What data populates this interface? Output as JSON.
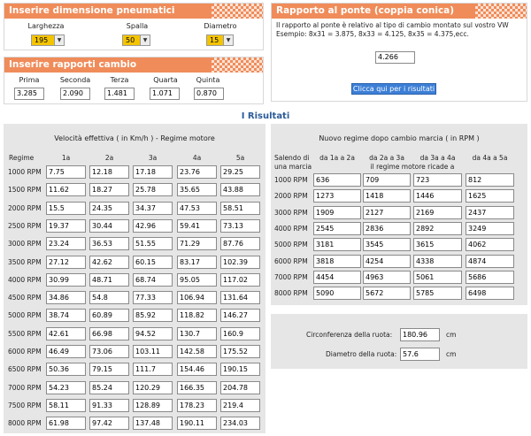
{
  "tyres": {
    "title": "Inserire dimensione pneumatici",
    "fields": [
      {
        "label": "Larghezza",
        "value": "195"
      },
      {
        "label": "Spalla",
        "value": "50"
      },
      {
        "label": "Diametro",
        "value": "15"
      }
    ]
  },
  "gears": {
    "title": "Inserire rapporti cambio",
    "fields": [
      {
        "label": "Prima",
        "value": "3.285"
      },
      {
        "label": "Seconda",
        "value": "2.090"
      },
      {
        "label": "Terza",
        "value": "1.481"
      },
      {
        "label": "Quarta",
        "value": "1.071"
      },
      {
        "label": "Quinta",
        "value": "0.870"
      }
    ]
  },
  "bridge": {
    "title": "Rapporto al ponte (coppia conica)",
    "line1": "Il rapporto al ponte è relativo al tipo di cambio montato sul vostro VW",
    "line2": "Esempio: 8x31 = 3.875, 8x33 = 4.125, 8x35 = 4.375,ecc.",
    "value": "4.266",
    "button": "Clicca qui per i risultati"
  },
  "results_title": "I Risultati",
  "speed": {
    "heading": "Velocità effettiva ( in Km/h ) - Regime motore",
    "col_regime": "Regime",
    "cols": [
      "1a",
      "2a",
      "3a",
      "4a",
      "5a"
    ],
    "rows": [
      {
        "rpm": "1000 RPM",
        "v": [
          "7.75",
          "12.18",
          "17.18",
          "23.76",
          "29.25"
        ]
      },
      {
        "rpm": "1500 RPM",
        "v": [
          "11.62",
          "18.27",
          "25.78",
          "35.65",
          "43.88"
        ]
      },
      {
        "rpm": "2000 RPM",
        "v": [
          "15.5",
          "24.35",
          "34.37",
          "47.53",
          "58.51"
        ]
      },
      {
        "rpm": "2500 RPM",
        "v": [
          "19.37",
          "30.44",
          "42.96",
          "59.41",
          "73.13"
        ]
      },
      {
        "rpm": "3000 RPM",
        "v": [
          "23.24",
          "36.53",
          "51.55",
          "71.29",
          "87.76"
        ]
      },
      {
        "rpm": "3500 RPM",
        "v": [
          "27.12",
          "42.62",
          "60.15",
          "83.17",
          "102.39"
        ]
      },
      {
        "rpm": "4000 RPM",
        "v": [
          "30.99",
          "48.71",
          "68.74",
          "95.05",
          "117.02"
        ]
      },
      {
        "rpm": "4500 RPM",
        "v": [
          "34.86",
          "54.8",
          "77.33",
          "106.94",
          "131.64"
        ]
      },
      {
        "rpm": "5000 RPM",
        "v": [
          "38.74",
          "60.89",
          "85.92",
          "118.82",
          "146.27"
        ]
      },
      {
        "rpm": "5500 RPM",
        "v": [
          "42.61",
          "66.98",
          "94.52",
          "130.7",
          "160.9"
        ]
      },
      {
        "rpm": "6000 RPM",
        "v": [
          "46.49",
          "73.06",
          "103.11",
          "142.58",
          "175.52"
        ]
      },
      {
        "rpm": "6500 RPM",
        "v": [
          "50.36",
          "79.15",
          "111.7",
          "154.46",
          "190.15"
        ]
      },
      {
        "rpm": "7000 RPM",
        "v": [
          "54.23",
          "85.24",
          "120.29",
          "166.35",
          "204.78"
        ]
      },
      {
        "rpm": "7500 RPM",
        "v": [
          "58.11",
          "91.33",
          "128.89",
          "178.23",
          "219.4"
        ]
      },
      {
        "rpm": "8000 RPM",
        "v": [
          "61.98",
          "97.42",
          "137.48",
          "190.11",
          "234.03"
        ]
      }
    ]
  },
  "shift": {
    "heading": "Nuovo regime dopo cambio marcia ( in RPM )",
    "col_first_l1": "Salendo di",
    "col_first_l2": "una marcia",
    "cols": [
      "da 1a a 2a",
      "da 2a a 3a",
      "da 3a a 4a",
      "da 4a a 5a"
    ],
    "subhead": "il regime motore ricade a",
    "rows": [
      {
        "rpm": "1000 RPM",
        "v": [
          "636",
          "709",
          "723",
          "812"
        ]
      },
      {
        "rpm": "2000 RPM",
        "v": [
          "1273",
          "1418",
          "1446",
          "1625"
        ]
      },
      {
        "rpm": "3000 RPM",
        "v": [
          "1909",
          "2127",
          "2169",
          "2437"
        ]
      },
      {
        "rpm": "4000 RPM",
        "v": [
          "2545",
          "2836",
          "2892",
          "3249"
        ]
      },
      {
        "rpm": "5000 RPM",
        "v": [
          "3181",
          "3545",
          "3615",
          "4062"
        ]
      },
      {
        "rpm": "6000 RPM",
        "v": [
          "3818",
          "4254",
          "4338",
          "4874"
        ]
      },
      {
        "rpm": "7000 RPM",
        "v": [
          "4454",
          "4963",
          "5061",
          "5686"
        ]
      },
      {
        "rpm": "8000 RPM",
        "v": [
          "5090",
          "5672",
          "5785",
          "6498"
        ]
      }
    ]
  },
  "wheel": {
    "circ_label": "Circonferenza della ruota:",
    "circ_value": "180.96",
    "circ_unit": "cm",
    "diam_label": "Diametro della ruota:",
    "diam_value": "57.6",
    "diam_unit": "cm"
  },
  "colors": {
    "panel_header": "#f08c5a",
    "select_bg": "#f4c400",
    "button": "#3d7fd6",
    "title_blue": "#2a5a9a",
    "table_bg": "#e6e6e6"
  },
  "icons": {
    "dropdown": "chevron-down-icon"
  }
}
